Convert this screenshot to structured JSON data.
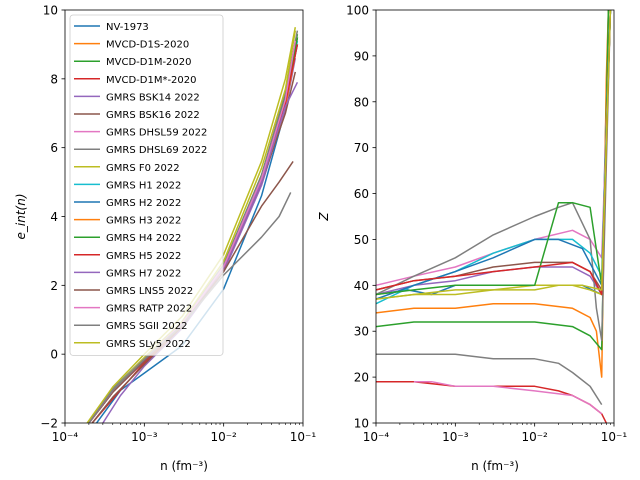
{
  "chart_data": [
    {
      "type": "line",
      "xlabel": "n (fm⁻³)",
      "ylabel": "e_int(n)",
      "xscale": "log",
      "xlim": [
        0.0001,
        0.1
      ],
      "ylim": [
        -2,
        10
      ],
      "xticks": [
        {
          "value": 0.0001,
          "label": "10⁻⁴"
        },
        {
          "value": 0.001,
          "label": "10⁻³"
        },
        {
          "value": 0.01,
          "label": "10⁻²"
        },
        {
          "value": 0.1,
          "label": "10⁻¹"
        }
      ],
      "yticks": [
        {
          "value": -2,
          "label": "−2"
        },
        {
          "value": 0,
          "label": "0"
        },
        {
          "value": 2,
          "label": "2"
        },
        {
          "value": 4,
          "label": "4"
        },
        {
          "value": 6,
          "label": "6"
        },
        {
          "value": 8,
          "label": "8"
        },
        {
          "value": 10,
          "label": "10"
        }
      ],
      "legend": "upper-left",
      "series": [
        {
          "name": "NV-1973",
          "color": "#1f77b4",
          "x": [
            0.00025,
            0.0005,
            0.001,
            0.003,
            0.01,
            0.03,
            0.06,
            0.085
          ],
          "y": [
            -2,
            -1.05,
            -0.55,
            0.25,
            1.9,
            4.6,
            7.1,
            9.2
          ]
        },
        {
          "name": "MVCD-D1S-2020",
          "color": "#ff7f0e",
          "x": [
            0.0002,
            0.0004,
            0.001,
            0.003,
            0.01,
            0.03,
            0.06,
            0.08
          ],
          "y": [
            -2,
            -1.1,
            -0.2,
            0.85,
            2.5,
            5.0,
            7.3,
            8.9
          ]
        },
        {
          "name": "MVCD-D1M-2020",
          "color": "#2ca02c",
          "x": [
            0.0002,
            0.0004,
            0.001,
            0.003,
            0.01,
            0.03,
            0.06,
            0.085
          ],
          "y": [
            -2,
            -1.05,
            -0.15,
            0.9,
            2.6,
            5.2,
            7.5,
            9.3
          ]
        },
        {
          "name": "MVCD-D1M*-2020",
          "color": "#d62728",
          "x": [
            0.00022,
            0.0004,
            0.001,
            0.003,
            0.01,
            0.03,
            0.06,
            0.085
          ],
          "y": [
            -2,
            -1.3,
            -0.25,
            0.8,
            2.5,
            5.0,
            7.4,
            9.2
          ]
        },
        {
          "name": "GMRS BSK14 2022",
          "color": "#9467bd",
          "x": [
            0.0003,
            0.0005,
            0.001,
            0.003,
            0.01,
            0.03,
            0.06,
            0.08
          ],
          "y": [
            -2,
            -1.2,
            -0.35,
            0.75,
            2.4,
            4.9,
            7.1,
            8.6
          ]
        },
        {
          "name": "GMRS BSK16 2022",
          "color": "#8c564b",
          "x": [
            0.00022,
            0.0004,
            0.001,
            0.003,
            0.01,
            0.03,
            0.06,
            0.08
          ],
          "y": [
            -2,
            -1.25,
            -0.3,
            0.8,
            2.5,
            5.0,
            7.0,
            8.2
          ]
        },
        {
          "name": "GMRS DHSL59 2022",
          "color": "#e377c2",
          "x": [
            0.0002,
            0.0004,
            0.001,
            0.003,
            0.01,
            0.03,
            0.06,
            0.085
          ],
          "y": [
            -2,
            -1.05,
            -0.15,
            0.9,
            2.55,
            5.1,
            7.3,
            9.0
          ]
        },
        {
          "name": "GMRS DHSL69 2022",
          "color": "#7f7f7f",
          "x": [
            0.0002,
            0.0004,
            0.001,
            0.003,
            0.01,
            0.03,
            0.06,
            0.085
          ],
          "y": [
            -2,
            -1.0,
            -0.1,
            0.95,
            2.6,
            5.2,
            7.6,
            9.4
          ]
        },
        {
          "name": "GMRS F0 2022",
          "color": "#bcbd22",
          "x": [
            0.0002,
            0.0004,
            0.001,
            0.003,
            0.01,
            0.03,
            0.06,
            0.08
          ],
          "y": [
            -2,
            -1.05,
            -0.1,
            0.95,
            2.7,
            5.4,
            7.7,
            9.4
          ]
        },
        {
          "name": "GMRS H1 2022",
          "color": "#17becf",
          "x": [
            0.0002,
            0.0004,
            0.001,
            0.003,
            0.01,
            0.03,
            0.06,
            0.085
          ],
          "y": [
            -2,
            -1.05,
            -0.15,
            0.9,
            2.55,
            5.1,
            7.4,
            9.1
          ]
        },
        {
          "name": "GMRS H2 2022",
          "color": "#1f77b4",
          "x": [
            0.0002,
            0.0004,
            0.001,
            0.003,
            0.01,
            0.03,
            0.06,
            0.085
          ],
          "y": [
            -2,
            -1.1,
            -0.2,
            0.85,
            2.5,
            5.0,
            7.3,
            9.0
          ]
        },
        {
          "name": "GMRS H3 2022",
          "color": "#ff7f0e",
          "x": [
            0.0002,
            0.0004,
            0.001,
            0.003,
            0.01,
            0.03,
            0.06,
            0.08
          ],
          "y": [
            -2,
            -1.1,
            -0.2,
            0.85,
            2.5,
            5.0,
            7.2,
            8.7
          ]
        },
        {
          "name": "GMRS H4 2022",
          "color": "#2ca02c",
          "x": [
            0.0002,
            0.0004,
            0.001,
            0.003,
            0.01,
            0.03,
            0.06,
            0.085
          ],
          "y": [
            -2,
            -1.05,
            -0.15,
            0.9,
            2.55,
            5.1,
            7.4,
            9.2
          ]
        },
        {
          "name": "GMRS H5 2022",
          "color": "#d62728",
          "x": [
            0.0002,
            0.0004,
            0.001,
            0.003,
            0.01,
            0.03,
            0.06,
            0.085
          ],
          "y": [
            -2,
            -1.1,
            -0.2,
            0.85,
            2.5,
            5.0,
            7.3,
            9.0
          ]
        },
        {
          "name": "GMRS H7 2022",
          "color": "#9467bd",
          "x": [
            0.0002,
            0.0004,
            0.001,
            0.003,
            0.01,
            0.03,
            0.06,
            0.085
          ],
          "y": [
            -2,
            -1.1,
            -0.2,
            0.85,
            2.5,
            5.0,
            7.2,
            7.9
          ]
        },
        {
          "name": "GMRS LNS5 2022",
          "color": "#8c564b",
          "x": [
            0.0002,
            0.0004,
            0.001,
            0.003,
            0.01,
            0.03,
            0.05,
            0.075
          ],
          "y": [
            -2,
            -1.1,
            -0.2,
            0.85,
            2.4,
            4.3,
            5.0,
            5.6
          ]
        },
        {
          "name": "GMRS RATP 2022",
          "color": "#e377c2",
          "x": [
            0.0002,
            0.0004,
            0.001,
            0.003,
            0.01,
            0.03,
            0.06,
            0.08
          ],
          "y": [
            -2,
            -1.05,
            -0.15,
            0.9,
            2.55,
            5.1,
            7.4,
            9.1
          ]
        },
        {
          "name": "GMRS SGII 2022",
          "color": "#7f7f7f",
          "x": [
            0.0002,
            0.0004,
            0.001,
            0.003,
            0.01,
            0.03,
            0.05,
            0.07
          ],
          "y": [
            -2,
            -1.05,
            -0.15,
            0.85,
            2.3,
            3.4,
            4.0,
            4.7
          ]
        },
        {
          "name": "GMRS SLy5 2022",
          "color": "#bcbd22",
          "x": [
            0.00019,
            0.0004,
            0.001,
            0.003,
            0.01,
            0.03,
            0.06,
            0.08
          ],
          "y": [
            -2,
            -0.95,
            0.0,
            1.1,
            2.9,
            5.6,
            8.0,
            9.5
          ]
        }
      ]
    },
    {
      "type": "line",
      "xlabel": "n (fm⁻³)",
      "ylabel": "Z",
      "xscale": "log",
      "xlim": [
        0.0001,
        0.1
      ],
      "ylim": [
        10,
        100
      ],
      "xticks": [
        {
          "value": 0.0001,
          "label": "10⁻⁴"
        },
        {
          "value": 0.001,
          "label": "10⁻³"
        },
        {
          "value": 0.01,
          "label": "10⁻²"
        },
        {
          "value": 0.1,
          "label": "10⁻¹"
        }
      ],
      "yticks": [
        {
          "value": 10,
          "label": "10"
        },
        {
          "value": 20,
          "label": "20"
        },
        {
          "value": 30,
          "label": "30"
        },
        {
          "value": 40,
          "label": "40"
        },
        {
          "value": 50,
          "label": "50"
        },
        {
          "value": 60,
          "label": "60"
        },
        {
          "value": 70,
          "label": "70"
        },
        {
          "value": 80,
          "label": "80"
        },
        {
          "value": 90,
          "label": "90"
        },
        {
          "value": 100,
          "label": "100"
        }
      ],
      "series": [
        {
          "color": "#1f77b4",
          "x": [
            0.0001,
            0.00025,
            0.0005,
            0.001,
            0.003,
            0.01,
            0.04,
            0.07,
            0.085
          ],
          "y": [
            38,
            39,
            38,
            40,
            40,
            40,
            40,
            38,
            100
          ]
        },
        {
          "color": "#ff7f0e",
          "x": [
            0.0001,
            0.0003,
            0.001,
            0.003,
            0.01,
            0.03,
            0.05,
            0.06,
            0.07,
            0.08,
            0.085
          ],
          "y": [
            34,
            35,
            35,
            36,
            36,
            35,
            33,
            30,
            20,
            85,
            100
          ]
        },
        {
          "color": "#2ca02c",
          "x": [
            0.0001,
            0.0003,
            0.001,
            0.003,
            0.01,
            0.03,
            0.05,
            0.07,
            0.085
          ],
          "y": [
            31,
            32,
            32,
            32,
            32,
            31,
            29,
            26,
            100
          ]
        },
        {
          "color": "#d62728",
          "x": [
            0.0001,
            0.0003,
            0.001,
            0.003,
            0.01,
            0.02,
            0.03,
            0.05,
            0.07,
            0.08
          ],
          "y": [
            19,
            19,
            18,
            18,
            18,
            17,
            16,
            14,
            12,
            10
          ]
        },
        {
          "color": "#9467bd",
          "x": [
            0.0001,
            0.0003,
            0.001,
            0.003,
            0.01,
            0.03,
            0.05,
            0.07,
            0.09
          ],
          "y": [
            38,
            40,
            41,
            43,
            44,
            44,
            42,
            38,
            100
          ]
        },
        {
          "color": "#8c564b",
          "x": [
            0.0001,
            0.0003,
            0.001,
            0.003,
            0.01,
            0.03,
            0.05,
            0.07,
            0.09
          ],
          "y": [
            39,
            41,
            42,
            44,
            45,
            45,
            43,
            39,
            100
          ]
        },
        {
          "color": "#e377c2",
          "x": [
            0.0001,
            0.0003,
            0.001,
            0.003,
            0.01,
            0.03,
            0.05,
            0.07,
            0.09
          ],
          "y": [
            40,
            42,
            44,
            47,
            50,
            52,
            50,
            46,
            100
          ]
        },
        {
          "color": "#7f7f7f",
          "x": [
            0.0001,
            0.0003,
            0.001,
            0.003,
            0.01,
            0.02,
            0.03,
            0.05,
            0.06,
            0.07,
            0.09
          ],
          "y": [
            38,
            42,
            46,
            51,
            55,
            57,
            58,
            50,
            35,
            28,
            100
          ]
        },
        {
          "color": "#bcbd22",
          "x": [
            0.0001,
            0.0003,
            0.001,
            0.003,
            0.01,
            0.03,
            0.05,
            0.07,
            0.09
          ],
          "y": [
            37,
            38,
            39,
            39,
            40,
            40,
            39,
            38,
            100
          ]
        },
        {
          "color": "#17becf",
          "x": [
            0.0001,
            0.0003,
            0.001,
            0.003,
            0.01,
            0.03,
            0.05,
            0.07,
            0.09
          ],
          "y": [
            36,
            40,
            43,
            47,
            50,
            50,
            47,
            42,
            100
          ]
        },
        {
          "color": "#1f77b4",
          "x": [
            0.0001,
            0.0003,
            0.001,
            0.003,
            0.01,
            0.02,
            0.04,
            0.07,
            0.09
          ],
          "y": [
            37,
            40,
            43,
            46,
            50,
            50,
            48,
            40,
            100
          ]
        },
        {
          "color": "#2ca02c",
          "x": [
            0.0001,
            0.0003,
            0.001,
            0.005,
            0.01,
            0.02,
            0.03,
            0.05,
            0.07,
            0.09
          ],
          "y": [
            38,
            39,
            40,
            40,
            40,
            58,
            58,
            57,
            40,
            100
          ]
        },
        {
          "color": "#d62728",
          "x": [
            0.0001,
            0.0003,
            0.001,
            0.003,
            0.01,
            0.03,
            0.05,
            0.07,
            0.09
          ],
          "y": [
            39,
            41,
            42,
            43,
            44,
            45,
            43,
            38,
            100
          ]
        },
        {
          "color": "#e377c2",
          "x": [
            0.0003,
            0.0005,
            0.001,
            0.003,
            0.01,
            0.03,
            0.05,
            0.07
          ],
          "y": [
            19,
            19,
            18,
            18,
            17,
            16,
            14,
            12
          ]
        },
        {
          "color": "#7f7f7f",
          "x": [
            0.0001,
            0.0003,
            0.001,
            0.003,
            0.01,
            0.02,
            0.03,
            0.05,
            0.07
          ],
          "y": [
            25,
            25,
            25,
            24,
            24,
            23,
            21,
            18,
            14
          ]
        },
        {
          "color": "#bcbd22",
          "x": [
            0.0001,
            0.0003,
            0.001,
            0.003,
            0.01,
            0.02,
            0.04,
            0.07,
            0.09
          ],
          "y": [
            37,
            38,
            38,
            39,
            39,
            40,
            40,
            39,
            100
          ]
        }
      ]
    }
  ]
}
